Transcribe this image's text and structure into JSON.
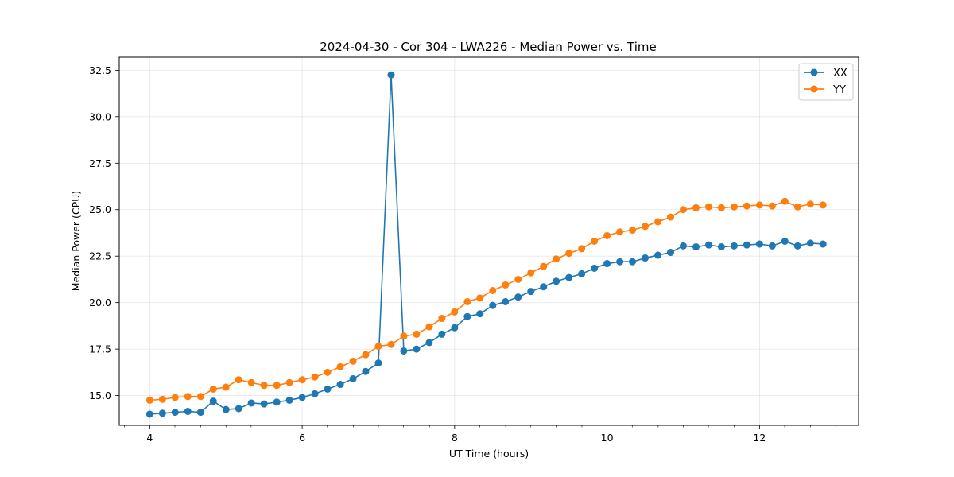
{
  "chart_data": {
    "type": "line",
    "title": "2024-04-30 - Cor 304 - LWA226 - Median Power vs. Time",
    "xlabel": "UT Time (hours)",
    "ylabel": "Median Power (CPU)",
    "xlim": [
      3.6,
      13.3
    ],
    "ylim": [
      13.4,
      33.2
    ],
    "x_ticks": [
      4,
      6,
      8,
      10,
      12
    ],
    "x_minor_ticks": [
      3.67,
      4.33,
      4.67,
      5,
      5.33,
      5.67,
      6.33,
      6.67,
      7,
      7.33,
      7.67,
      8.33,
      8.67,
      9,
      9.33,
      9.67,
      10.33,
      10.67,
      11,
      11.33,
      11.67,
      12.33,
      12.67,
      13
    ],
    "y_ticks": [
      15.0,
      17.5,
      20.0,
      22.5,
      25.0,
      27.5,
      30.0,
      32.5
    ],
    "y_tick_labels": [
      "15.0",
      "17.5",
      "20.0",
      "22.5",
      "25.0",
      "27.5",
      "30.0",
      "32.5"
    ],
    "grid": true,
    "legend_position": "top-right",
    "x": [
      4.0,
      4.167,
      4.333,
      4.5,
      4.667,
      4.833,
      5.0,
      5.167,
      5.333,
      5.5,
      5.667,
      5.833,
      6.0,
      6.167,
      6.333,
      6.5,
      6.667,
      6.833,
      7.0,
      7.167,
      7.333,
      7.5,
      7.667,
      7.833,
      8.0,
      8.167,
      8.333,
      8.5,
      8.667,
      8.833,
      9.0,
      9.167,
      9.333,
      9.5,
      9.667,
      9.833,
      10.0,
      10.167,
      10.333,
      10.5,
      10.667,
      10.833,
      11.0,
      11.167,
      11.333,
      11.5,
      11.667,
      11.833,
      12.0,
      12.167,
      12.333,
      12.5,
      12.667,
      12.833
    ],
    "series": [
      {
        "name": "XX",
        "color": "#1f77b4",
        "values": [
          14.0,
          14.05,
          14.1,
          14.15,
          14.1,
          14.7,
          14.25,
          14.3,
          14.6,
          14.55,
          14.65,
          14.75,
          14.9,
          15.1,
          15.35,
          15.6,
          15.9,
          16.3,
          16.75,
          32.25,
          17.4,
          17.5,
          17.85,
          18.3,
          18.65,
          19.25,
          19.4,
          19.85,
          20.05,
          20.3,
          20.6,
          20.85,
          21.15,
          21.35,
          21.55,
          21.85,
          22.1,
          22.2,
          22.2,
          22.4,
          22.55,
          22.7,
          23.05,
          23.0,
          23.1,
          23.0,
          23.05,
          23.1,
          23.15,
          23.05,
          23.3,
          23.05,
          23.2,
          23.15
        ]
      },
      {
        "name": "YY",
        "color": "#ff7f0e",
        "values": [
          14.75,
          14.8,
          14.9,
          14.95,
          14.95,
          15.35,
          15.45,
          15.85,
          15.7,
          15.55,
          15.55,
          15.7,
          15.85,
          16.0,
          16.25,
          16.55,
          16.85,
          17.2,
          17.65,
          17.75,
          18.2,
          18.3,
          18.7,
          19.15,
          19.5,
          20.05,
          20.25,
          20.65,
          20.95,
          21.25,
          21.6,
          21.95,
          22.35,
          22.65,
          22.9,
          23.3,
          23.6,
          23.8,
          23.9,
          24.1,
          24.35,
          24.6,
          25.0,
          25.1,
          25.15,
          25.1,
          25.15,
          25.2,
          25.25,
          25.2,
          25.45,
          25.15,
          25.3,
          25.25
        ]
      }
    ]
  }
}
